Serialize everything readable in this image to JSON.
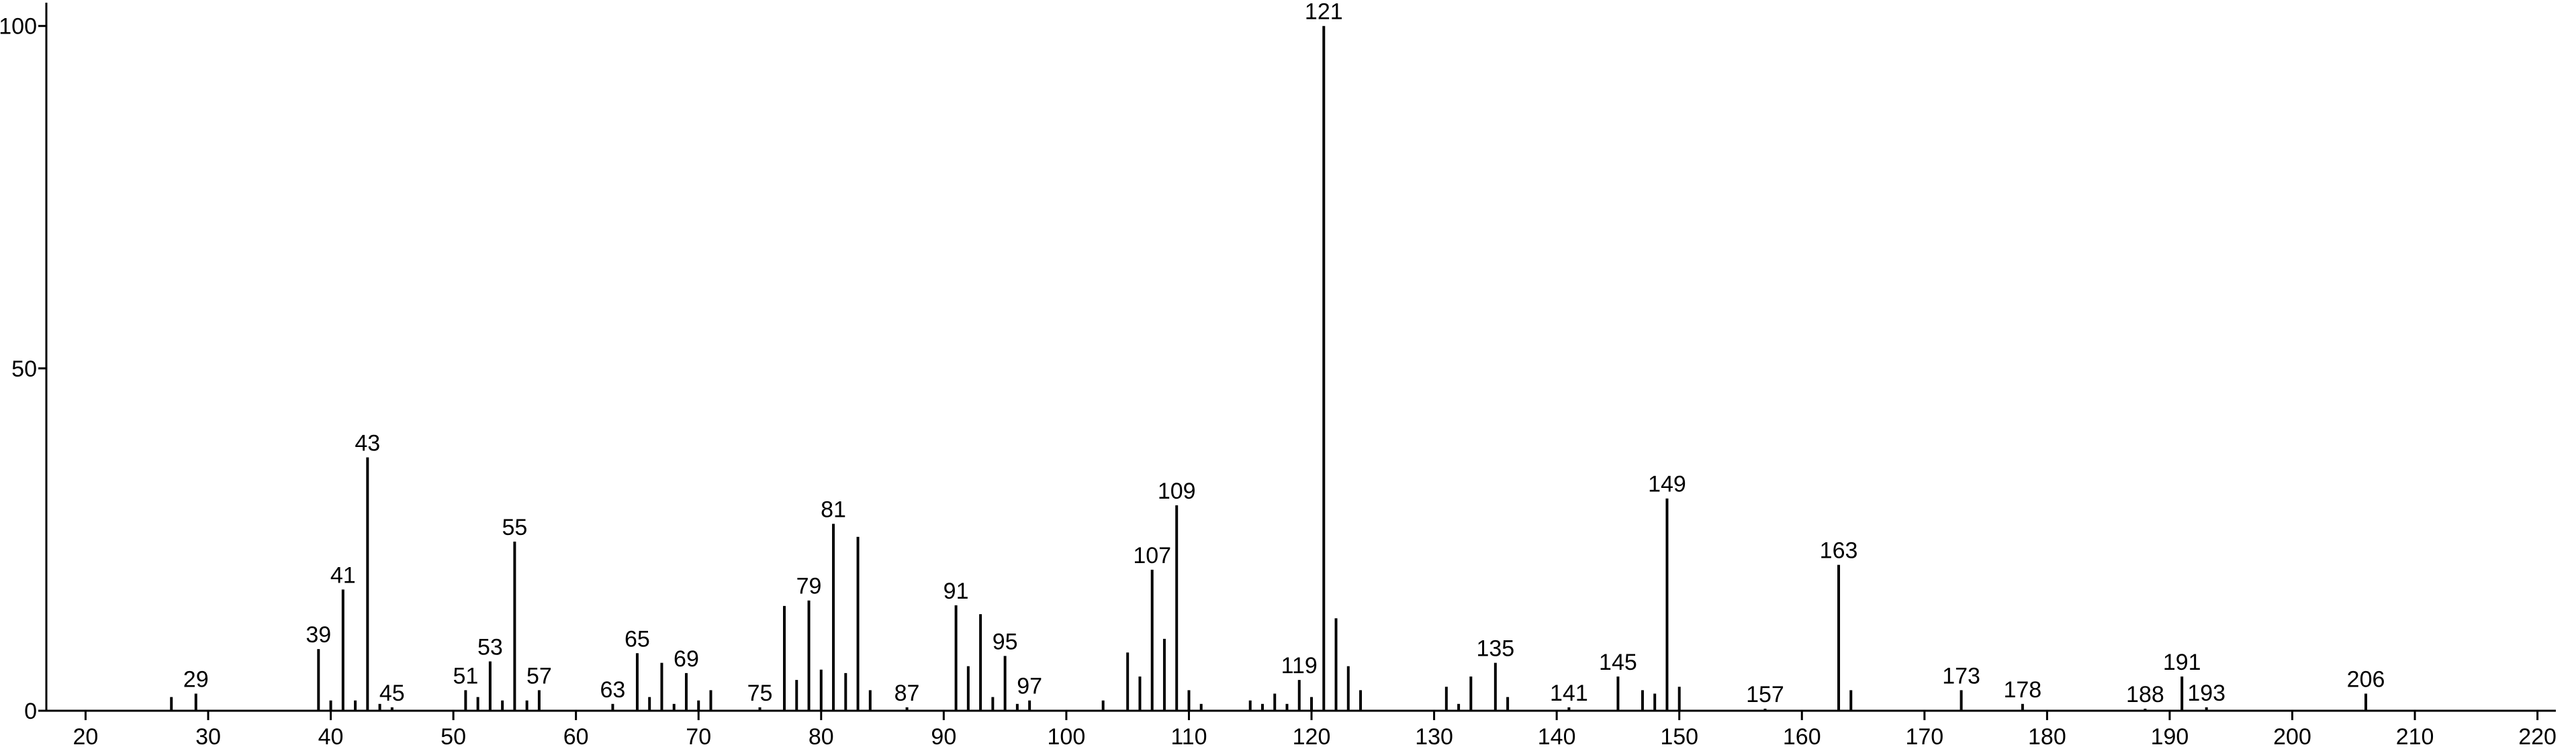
{
  "chart_data": {
    "type": "bar",
    "x": [
      27,
      29,
      39,
      40,
      41,
      42,
      43,
      44,
      45,
      51,
      52,
      53,
      54,
      55,
      56,
      57,
      63,
      65,
      66,
      67,
      68,
      69,
      70,
      71,
      75,
      77,
      78,
      79,
      80,
      81,
      82,
      83,
      84,
      87,
      91,
      92,
      93,
      94,
      95,
      96,
      97,
      103,
      105,
      106,
      107,
      108,
      109,
      110,
      111,
      115,
      116,
      117,
      118,
      119,
      120,
      121,
      122,
      123,
      124,
      131,
      132,
      133,
      135,
      136,
      141,
      145,
      147,
      148,
      149,
      150,
      157,
      163,
      164,
      173,
      178,
      188,
      191,
      193,
      206
    ],
    "values": [
      2,
      2.5,
      9,
      1.5,
      17.7,
      1.5,
      37,
      1,
      0.5,
      3,
      2,
      7.2,
      1.5,
      24.7,
      1.5,
      3,
      1,
      8.4,
      2,
      7,
      1,
      5.5,
      1.5,
      3,
      0.5,
      15.3,
      4.5,
      16.1,
      6,
      27.3,
      5.5,
      25.4,
      3,
      0.5,
      15.4,
      6.5,
      14.1,
      2,
      8,
      1,
      1.5,
      1.5,
      8.5,
      5,
      20.6,
      10.5,
      30,
      3,
      1,
      1.5,
      1,
      2.5,
      1,
      4.5,
      2,
      100,
      13.5,
      6.5,
      3,
      3.5,
      1,
      5,
      7,
      2,
      0.5,
      5,
      3,
      2.5,
      31,
      3.5,
      0.3,
      21.3,
      3,
      3,
      1,
      0.3,
      5,
      0.5,
      2.5
    ],
    "peak_labels": [
      null,
      29,
      39,
      null,
      41,
      null,
      43,
      null,
      45,
      51,
      null,
      53,
      null,
      55,
      null,
      57,
      63,
      65,
      null,
      null,
      null,
      69,
      null,
      null,
      75,
      null,
      null,
      79,
      null,
      81,
      null,
      null,
      null,
      87,
      91,
      null,
      null,
      null,
      95,
      null,
      97,
      null,
      null,
      null,
      107,
      null,
      109,
      null,
      null,
      null,
      null,
      null,
      null,
      119,
      null,
      121,
      null,
      null,
      null,
      null,
      null,
      null,
      135,
      null,
      141,
      145,
      null,
      null,
      149,
      null,
      157,
      163,
      null,
      173,
      178,
      188,
      191,
      193,
      206
    ],
    "color": "#000000",
    "xlim": [
      16.8,
      221.5
    ],
    "xticks": [
      20,
      30,
      40,
      50,
      60,
      70,
      80,
      90,
      100,
      110,
      120,
      130,
      140,
      150,
      160,
      170,
      180,
      190,
      200,
      210,
      220
    ],
    "ylim": [
      0,
      103.4
    ],
    "yticks": [
      0,
      50,
      100
    ]
  }
}
